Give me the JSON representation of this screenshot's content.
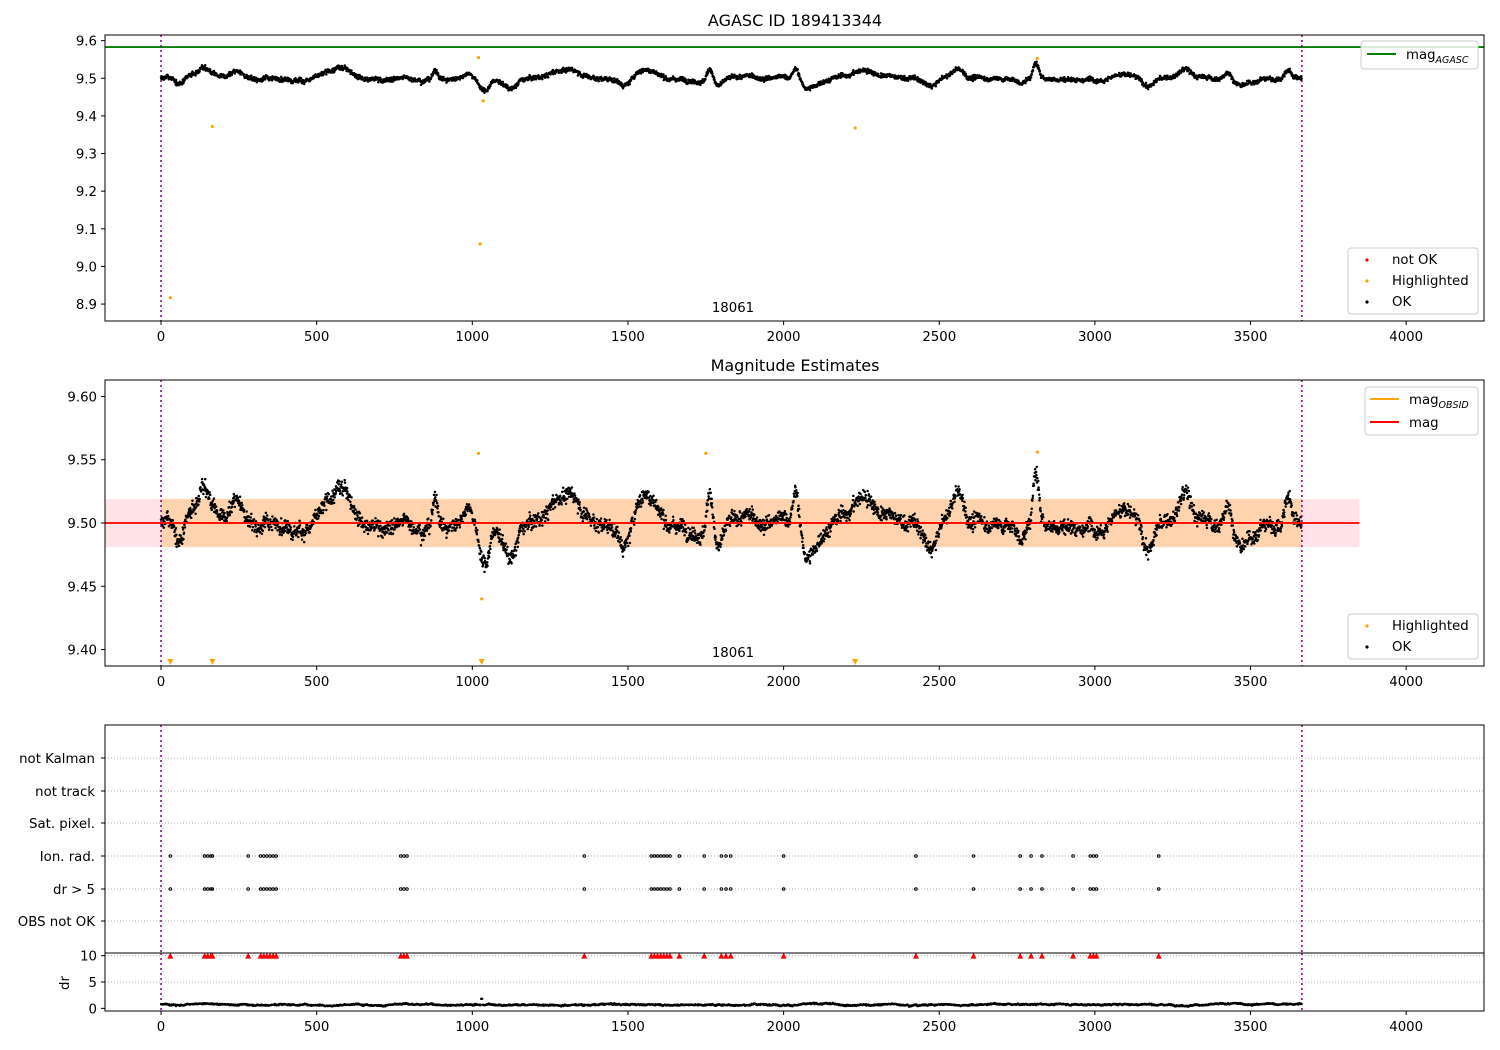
{
  "figure": {
    "background": "#ffffff"
  },
  "chart_data": [
    {
      "type": "scatter",
      "title": "AGASC ID 189413344",
      "xlim": [
        -180,
        4250
      ],
      "ylim": [
        8.855,
        9.615
      ],
      "xticks": [
        0,
        500,
        1000,
        1500,
        2000,
        2500,
        3000,
        3500,
        4000
      ],
      "yticks": [
        8.9,
        9.0,
        9.1,
        9.2,
        9.3,
        9.4,
        9.5,
        9.6
      ],
      "vlines": [
        0,
        3665
      ],
      "vline_color": "#800080",
      "hlines": [
        {
          "name": "mag",
          "sub": "AGASC",
          "y": 9.583,
          "color": "#008000"
        }
      ],
      "annotation": {
        "text": "18061",
        "x": 1830,
        "y": 8.87
      },
      "legend_upper": {
        "position": "top-right",
        "entries": [
          {
            "label": "mag",
            "sub": "AGASC",
            "color": "#008000"
          }
        ]
      },
      "legend_lower": {
        "position": "bottom-right",
        "entries": [
          {
            "label": "not OK",
            "color": "#ff0000"
          },
          {
            "label": "Highlighted",
            "color": "#ffa500"
          },
          {
            "label": "OK",
            "color": "#000000"
          }
        ]
      },
      "series": [
        {
          "name": "OK",
          "color": "#000000",
          "description": "continuous time series, 3665 samples",
          "mean": 9.5,
          "range": [
            9.445,
            9.555
          ]
        },
        {
          "name": "Highlighted",
          "color": "#ffa500",
          "points": [
            [
              30,
              8.917
            ],
            [
              165,
              9.372
            ],
            [
              1025,
              9.06
            ],
            [
              1035,
              9.44
            ],
            [
              1020,
              9.555
            ],
            [
              2230,
              9.368
            ],
            [
              2815,
              9.553
            ]
          ]
        }
      ]
    },
    {
      "type": "scatter",
      "title": "Magnitude Estimates",
      "xlim": [
        -180,
        4250
      ],
      "ylim": [
        9.387,
        9.613
      ],
      "xticks": [
        0,
        500,
        1000,
        1500,
        2000,
        2500,
        3000,
        3500,
        4000
      ],
      "yticks": [
        9.4,
        9.45,
        9.5,
        9.55,
        9.6
      ],
      "vlines": [
        0,
        3665
      ],
      "vline_color": "#800080",
      "hlines": [
        {
          "name": "mag",
          "sub": "OBSID",
          "y": 9.5,
          "color": "#ffa500",
          "x_range": [
            0,
            3665
          ]
        },
        {
          "name": "mag",
          "y": 9.5,
          "color": "#ff0000",
          "x_range": [
            -180,
            3850
          ]
        }
      ],
      "bands": [
        {
          "y": [
            9.481,
            9.519
          ],
          "x": [
            -180,
            3850
          ],
          "color": "#ffc0cb",
          "opacity": 0.45
        },
        {
          "y": [
            9.481,
            9.519
          ],
          "x": [
            0,
            3665
          ],
          "color": "#ffa500",
          "opacity": 0.25
        }
      ],
      "annotation": {
        "text": "18061",
        "x": 1830,
        "y": 9.398
      },
      "legend_upper": {
        "position": "top-right",
        "entries": [
          {
            "label": "mag",
            "sub": "OBSID",
            "color": "#ffa500"
          },
          {
            "label": "mag",
            "color": "#ff0000"
          }
        ]
      },
      "legend_lower": {
        "position": "bottom-right",
        "entries": [
          {
            "label": "Highlighted",
            "color": "#ffa500"
          },
          {
            "label": "OK",
            "color": "#000000"
          }
        ]
      },
      "series": [
        {
          "name": "OK",
          "color": "#000000",
          "description": "same time series as upper panel",
          "mean": 9.5,
          "range": [
            9.445,
            9.555
          ]
        },
        {
          "name": "Highlighted",
          "color": "#ffa500",
          "points": [
            [
              1020,
              9.555
            ],
            [
              1030,
              9.44
            ],
            [
              1750,
              9.555
            ],
            [
              2815,
              9.556
            ]
          ]
        },
        {
          "name": "Highlighted (below range)",
          "color": "#ffa500",
          "marker": "triangle-down",
          "x": [
            30,
            165,
            1030,
            2230
          ]
        }
      ]
    },
    {
      "type": "scatter",
      "xlim": [
        -180,
        4250
      ],
      "vlines": [
        0,
        3665
      ],
      "vline_color": "#800080",
      "flag_rows": [
        "not Kalman",
        "not track",
        "Sat. pixel.",
        "Ion. rad.",
        "dr > 5",
        "OBS not OK"
      ],
      "flag_x": [
        30,
        140,
        150,
        160,
        165,
        280,
        320,
        330,
        340,
        350,
        360,
        370,
        770,
        780,
        790,
        1360,
        1575,
        1585,
        1595,
        1605,
        1615,
        1625,
        1635,
        1665,
        1745,
        1800,
        1815,
        1830,
        2000,
        2425,
        2610,
        2760,
        2795,
        2830,
        2930,
        2985,
        2995,
        3005,
        3205
      ],
      "flag_present_rows": [
        "Ion. rad.",
        "dr > 5"
      ]
    },
    {
      "type": "scatter",
      "xlim": [
        -180,
        4250
      ],
      "ylim": [
        -0.5,
        10.5
      ],
      "ylabel": "dr",
      "yticks": [
        0,
        5,
        10
      ],
      "xticks": [
        0,
        500,
        1000,
        1500,
        2000,
        2500,
        3000,
        3500,
        4000
      ],
      "vlines": [
        0,
        3665
      ],
      "vline_color": "#800080",
      "series": [
        {
          "name": "dr",
          "color": "#000000",
          "description": "dr for every sample",
          "range": [
            0,
            1.5
          ]
        },
        {
          "name": "dr > 5 (clipped)",
          "color": "#ff0000",
          "marker": "triangle-up",
          "value": 10
        }
      ]
    }
  ]
}
